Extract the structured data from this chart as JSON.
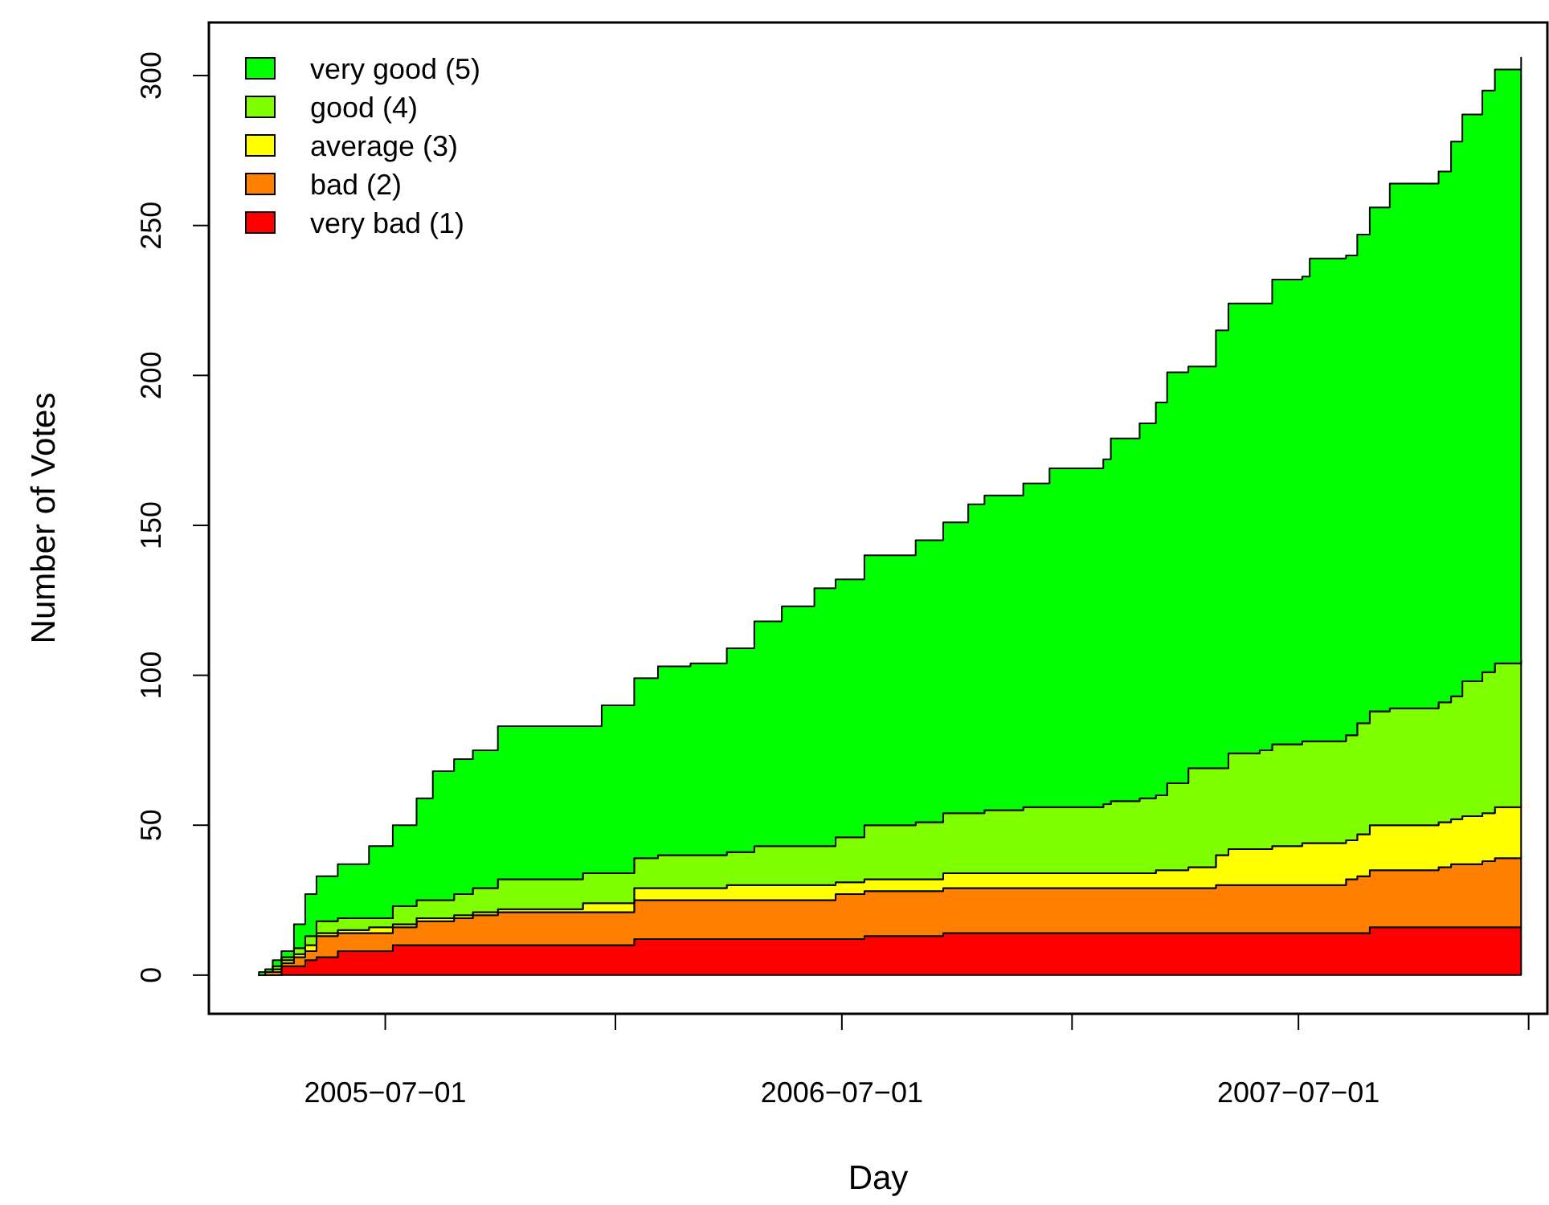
{
  "chart_data": {
    "type": "area",
    "stacked": true,
    "xlabel": "Day",
    "ylabel": "Number of Votes",
    "legend": "top left",
    "grid": false,
    "x": [
      "2005-03-22",
      "2005-03-27",
      "2005-04-02",
      "2005-04-09",
      "2005-04-19",
      "2005-04-28",
      "2005-05-07",
      "2005-05-24",
      "2005-06-18",
      "2005-07-07",
      "2005-07-26",
      "2005-08-08",
      "2005-08-25",
      "2005-09-09",
      "2005-09-29",
      "2005-12-06",
      "2005-12-21",
      "2006-01-16",
      "2006-02-04",
      "2006-03-02",
      "2006-03-31",
      "2006-04-22",
      "2006-05-14",
      "2006-06-09",
      "2006-06-26",
      "2006-07-19",
      "2006-08-12",
      "2006-08-29",
      "2006-09-20",
      "2006-10-10",
      "2006-10-23",
      "2006-11-07",
      "2006-11-23",
      "2006-12-14",
      "2007-01-08",
      "2007-01-26",
      "2007-02-01",
      "2007-02-24",
      "2007-03-09",
      "2007-03-18",
      "2007-04-04",
      "2007-04-26",
      "2007-05-06",
      "2007-05-31",
      "2007-06-10",
      "2007-07-04",
      "2007-07-10",
      "2007-08-08",
      "2007-08-17",
      "2007-08-27",
      "2007-09-12",
      "2007-10-10",
      "2007-10-21",
      "2007-10-31",
      "2007-11-09",
      "2007-11-25",
      "2007-12-05",
      "2007-12-26"
    ],
    "series": [
      {
        "name": "very bad (1)",
        "color": "#ff0000",
        "values": [
          0,
          0,
          0,
          3,
          3,
          5,
          6,
          8,
          8,
          10,
          10,
          10,
          10,
          10,
          10,
          10,
          10,
          12,
          12,
          12,
          12,
          12,
          12,
          12,
          12,
          13,
          13,
          13,
          14,
          14,
          14,
          14,
          14,
          14,
          14,
          14,
          14,
          14,
          14,
          14,
          14,
          14,
          14,
          14,
          14,
          14,
          14,
          14,
          14,
          16,
          16,
          16,
          16,
          16,
          16,
          16,
          16,
          16
        ]
      },
      {
        "name": "bad (2)",
        "color": "#ff8000",
        "values": [
          0,
          1,
          1,
          1,
          3,
          3,
          7,
          6,
          6,
          6,
          8,
          8,
          9,
          10,
          11,
          11,
          11,
          13,
          13,
          13,
          13,
          13,
          13,
          13,
          15,
          15,
          15,
          15,
          15,
          15,
          15,
          15,
          15,
          15,
          15,
          15,
          15,
          15,
          15,
          15,
          15,
          16,
          16,
          16,
          16,
          16,
          16,
          18,
          19,
          19,
          19,
          19,
          20,
          21,
          21,
          22,
          23,
          23
        ]
      },
      {
        "name": "average (3)",
        "color": "#ffff00",
        "values": [
          0,
          0,
          1,
          1,
          1,
          2,
          1,
          1,
          2,
          1,
          1,
          1,
          1,
          1,
          1,
          3,
          3,
          4,
          4,
          4,
          5,
          5,
          5,
          5,
          4,
          4,
          4,
          4,
          5,
          5,
          5,
          5,
          5,
          5,
          5,
          5,
          5,
          5,
          6,
          6,
          7,
          10,
          12,
          12,
          13,
          14,
          14,
          13,
          14,
          15,
          15,
          15,
          15,
          15,
          16,
          16,
          17,
          17
        ]
      },
      {
        "name": "good (4)",
        "color": "#80ff00",
        "values": [
          0,
          0,
          1,
          1,
          2,
          3,
          4,
          4,
          3,
          6,
          6,
          6,
          7,
          8,
          10,
          10,
          10,
          10,
          11,
          11,
          11,
          13,
          13,
          13,
          15,
          18,
          18,
          19,
          20,
          20,
          21,
          21,
          22,
          22,
          22,
          23,
          24,
          25,
          25,
          29,
          33,
          29,
          32,
          33,
          34,
          34,
          34,
          35,
          37,
          38,
          39,
          39,
          40,
          41,
          45,
          47,
          48,
          49
        ]
      },
      {
        "name": "very good (5)",
        "color": "#00ff00",
        "values": [
          1,
          1,
          2,
          2,
          8,
          14,
          15,
          18,
          24,
          27,
          34,
          43,
          45,
          46,
          51,
          49,
          56,
          60,
          63,
          64,
          68,
          75,
          80,
          86,
          86,
          90,
          90,
          94,
          97,
          103,
          105,
          105,
          108,
          113,
          113,
          115,
          121,
          125,
          131,
          137,
          134,
          146,
          150,
          149,
          155,
          155,
          161,
          160,
          163,
          168,
          175,
          175,
          177,
          185,
          189,
          194,
          198,
          201
        ]
      }
    ],
    "xlim": [
      "2005-02-10",
      "2008-01-16"
    ],
    "xticks": [
      {
        "value": "2005-07-01",
        "label": "2005−07−01"
      },
      {
        "value": "2006-01-01",
        "label": null
      },
      {
        "value": "2006-07-01",
        "label": "2006−07−01"
      },
      {
        "value": "2007-01-01",
        "label": null
      },
      {
        "value": "2007-07-01",
        "label": "2007−07−01"
      },
      {
        "value": "2008-01-01",
        "label": null
      }
    ],
    "ylim": [
      -12.9,
      317.7
    ],
    "yticks": [
      0,
      50,
      100,
      150,
      200,
      250,
      300
    ]
  }
}
